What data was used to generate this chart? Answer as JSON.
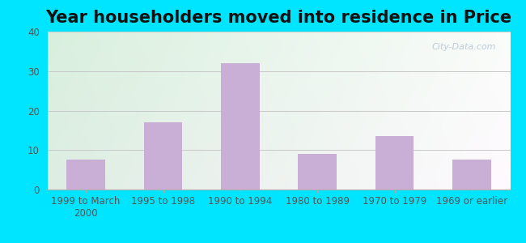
{
  "title": "Year householders moved into residence in Price",
  "categories": [
    "1999 to March\n2000",
    "1995 to 1998",
    "1990 to 1994",
    "1980 to 1989",
    "1970 to 1979",
    "1969 or earlier"
  ],
  "values": [
    7.5,
    17.0,
    32.0,
    9.0,
    13.5,
    7.5
  ],
  "bar_color": "#c9aed6",
  "ylim": [
    0,
    40
  ],
  "yticks": [
    0,
    10,
    20,
    30,
    40
  ],
  "background_outer": "#00e5ff",
  "grid_color": "#c8c8c8",
  "title_fontsize": 15,
  "tick_fontsize": 8.5,
  "watermark": "City-Data.com"
}
